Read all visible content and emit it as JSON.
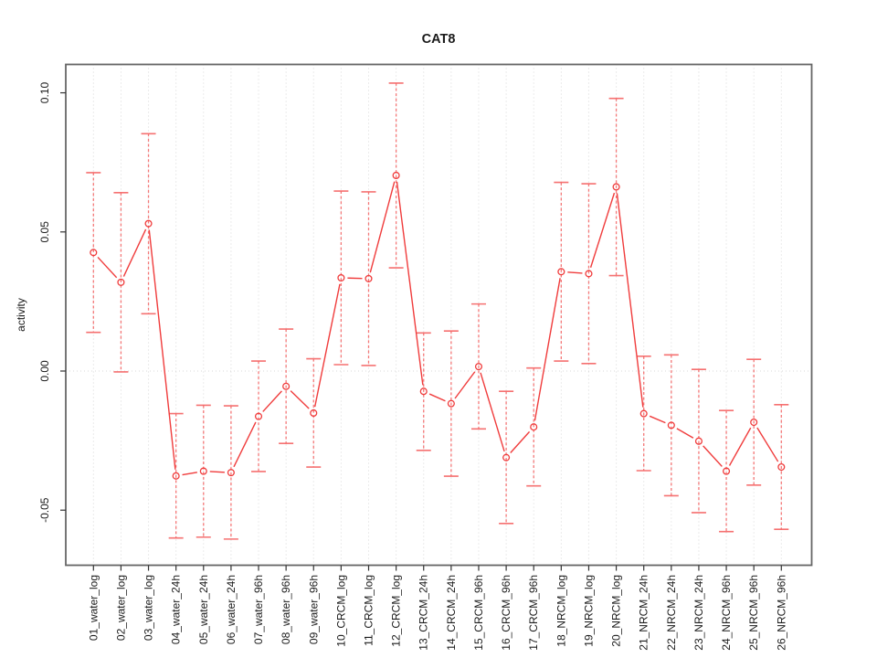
{
  "title": "CAT8",
  "colors": {
    "series_red": "#f03c3c",
    "errorbar_red": "#f56a6a",
    "grid_gray": "#d8d8d8",
    "box_gray": "#666666",
    "text_black": "#1a1a1a"
  },
  "chart_data": {
    "type": "line",
    "title": "CAT8",
    "xlabel": "",
    "ylabel": "activity",
    "legend": "none",
    "grid": "vertical dotted gridline per category; dotted horizontal line at y=0",
    "marker": "open-circle",
    "error_bars": true,
    "ylim": [
      -0.0698,
      0.1102
    ],
    "yticks": [
      0.1,
      0.05,
      0.0,
      -0.05
    ],
    "ytick_labels": [
      "0.10",
      "0.05",
      "0.00",
      "-0.05"
    ],
    "categories": [
      "01_water_log",
      "02_water_log",
      "03_water_log",
      "04_water_24h",
      "05_water_24h",
      "06_water_24h",
      "07_water_96h",
      "08_water_96h",
      "09_water_96h",
      "10_CRCM_log",
      "11_CRCM_log",
      "12_CRCM_log",
      "13_CRCM_24h",
      "14_CRCM_24h",
      "15_CRCM_96h",
      "16_CRCM_96h",
      "17_CRCM_96h",
      "18_NRCM_log",
      "19_NRCM_log",
      "20_NRCM_log",
      "21_NRCM_24h",
      "22_NRCM_24h",
      "23_NRCM_24h",
      "24_NRCM_96h",
      "25_NRCM_96h",
      "26_NRCM_96h"
    ],
    "series": [
      {
        "name": "activity",
        "values": [
          0.0426,
          0.0319,
          0.053,
          -0.0377,
          -0.036,
          -0.0365,
          -0.0163,
          -0.0055,
          -0.0151,
          0.0335,
          0.0332,
          0.0703,
          -0.0073,
          -0.0117,
          0.0016,
          -0.0311,
          -0.0201,
          0.0357,
          0.035,
          0.0662,
          -0.0153,
          -0.0195,
          -0.0252,
          -0.036,
          -0.0184,
          -0.0345
        ],
        "upper": [
          0.0713,
          0.0641,
          0.0853,
          -0.0153,
          -0.0123,
          -0.0125,
          0.0036,
          0.0151,
          0.0044,
          0.0647,
          0.0644,
          0.1035,
          0.0137,
          0.0144,
          0.0241,
          -0.0073,
          0.0011,
          0.0678,
          0.0673,
          0.098,
          0.0053,
          0.0058,
          0.0006,
          -0.0142,
          0.0042,
          -0.0121
        ],
        "lower": [
          0.0139,
          -0.0003,
          0.0206,
          -0.06,
          -0.0597,
          -0.0604,
          -0.0361,
          -0.026,
          -0.0345,
          0.0023,
          0.002,
          0.0371,
          -0.0285,
          -0.0378,
          -0.0208,
          -0.0548,
          -0.0413,
          0.0036,
          0.0027,
          0.0343,
          -0.0358,
          -0.0448,
          -0.0509,
          -0.0577,
          -0.041,
          -0.0569
        ]
      }
    ]
  }
}
